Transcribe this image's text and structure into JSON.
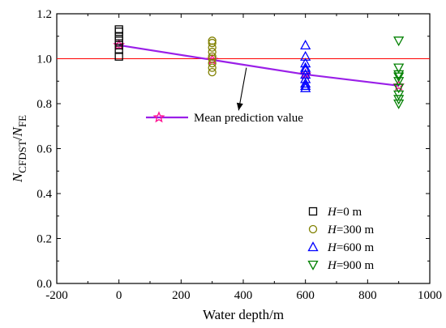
{
  "chart_data": {
    "type": "scatter",
    "xlabel": "Water depth/m",
    "ylabel": {
      "main": "N",
      "sub": "CFDST",
      "slash": "/",
      "main2": "N",
      "sub2": "FE"
    },
    "xlim": [
      -200,
      1000
    ],
    "ylim": [
      0.0,
      1.2
    ],
    "xticks": [
      -200,
      0,
      200,
      400,
      600,
      800,
      1000
    ],
    "yticks": [
      0.0,
      0.2,
      0.4,
      0.6,
      0.8,
      1.0,
      1.2
    ],
    "ytick_labels": [
      "0.0",
      "0.2",
      "0.4",
      "0.6",
      "0.8",
      "1.0",
      "1.2"
    ],
    "grid": false,
    "legend_position": "bottom-right",
    "reference_line": {
      "y": 1.0,
      "color": "#ff0000"
    },
    "series": [
      {
        "name": "H=0 m",
        "label_italic": "H",
        "label_rest": "=0 m",
        "marker": "square",
        "color": "#000000",
        "x": [
          0,
          0,
          0,
          0,
          0,
          0,
          0
        ],
        "y": [
          1.01,
          1.04,
          1.06,
          1.08,
          1.1,
          1.12,
          1.13
        ]
      },
      {
        "name": "H=300 m",
        "label_italic": "H",
        "label_rest": "=300 m",
        "marker": "circle",
        "color": "#808000",
        "x": [
          300,
          300,
          300,
          300,
          300,
          300,
          300,
          300,
          300
        ],
        "y": [
          0.94,
          0.96,
          0.98,
          1.0,
          1.01,
          1.03,
          1.05,
          1.07,
          1.08
        ]
      },
      {
        "name": "H=600 m",
        "label_italic": "H",
        "label_rest": "=600 m",
        "marker": "triangle-up",
        "color": "#0000ff",
        "x": [
          600,
          600,
          600,
          600,
          600,
          600,
          600,
          600,
          600,
          600
        ],
        "y": [
          0.87,
          0.89,
          0.91,
          0.93,
          0.95,
          0.96,
          0.98,
          1.01,
          1.06,
          0.88
        ]
      },
      {
        "name": "H=900 m",
        "label_italic": "H",
        "label_rest": "=900 m",
        "marker": "triangle-down",
        "color": "#008000",
        "x": [
          900,
          900,
          900,
          900,
          900,
          900,
          900,
          900,
          900
        ],
        "y": [
          0.8,
          0.82,
          0.84,
          0.87,
          0.9,
          0.92,
          0.93,
          0.96,
          1.08
        ]
      }
    ],
    "mean_prediction": {
      "name": "Mean prediction value",
      "color": "#9a1fe8",
      "marker_color": "#ff1493",
      "x": [
        0,
        300,
        600,
        900
      ],
      "y": [
        1.06,
        0.995,
        0.93,
        0.88
      ]
    }
  }
}
